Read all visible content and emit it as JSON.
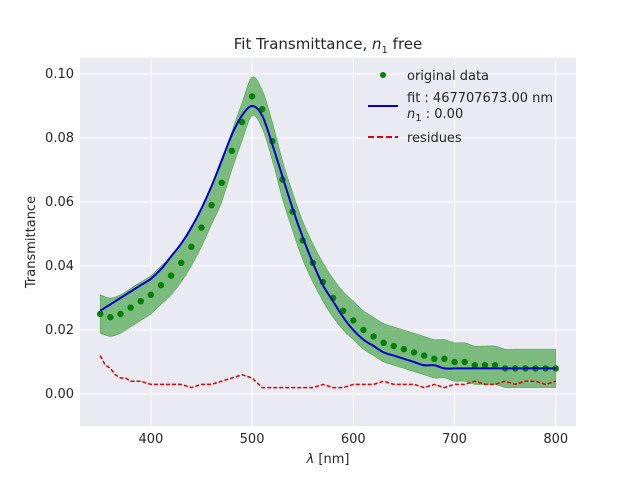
{
  "chart_data": {
    "type": "line",
    "title_main": "Fit Transmittance, ",
    "title_var": "n",
    "title_sub": "1",
    "title_tail": " free",
    "xlabel_var": "λ",
    "xlabel_unit": " [nm]",
    "ylabel": "Transmittance",
    "xlim": [
      330,
      820
    ],
    "ylim": [
      -0.01,
      0.105
    ],
    "xticks": [
      400,
      500,
      600,
      700,
      800
    ],
    "yticks": [
      0.0,
      0.02,
      0.04,
      0.06,
      0.08,
      0.1
    ],
    "ytick_labels": [
      "0.00",
      "0.02",
      "0.04",
      "0.06",
      "0.08",
      "0.10"
    ],
    "grid": true,
    "legend_position": "top-right",
    "legend": {
      "data_label": "original data",
      "fit_label_1": "fit : 467707673.00 nm",
      "fit_label_2_var": "n",
      "fit_label_2_sub": "1",
      "fit_label_2_tail": " : 0.00",
      "residues_label": "residues"
    },
    "series": [
      {
        "name": "original data",
        "kind": "points_with_error_band",
        "x": [
          350,
          360,
          370,
          380,
          390,
          400,
          410,
          420,
          430,
          440,
          450,
          460,
          470,
          480,
          490,
          500,
          510,
          520,
          530,
          540,
          550,
          560,
          570,
          580,
          590,
          600,
          610,
          620,
          630,
          640,
          650,
          660,
          670,
          680,
          690,
          700,
          710,
          720,
          730,
          740,
          750,
          760,
          770,
          780,
          790,
          800
        ],
        "y": [
          0.025,
          0.024,
          0.025,
          0.027,
          0.029,
          0.031,
          0.034,
          0.037,
          0.041,
          0.046,
          0.052,
          0.059,
          0.066,
          0.076,
          0.085,
          0.093,
          0.089,
          0.079,
          0.067,
          0.057,
          0.048,
          0.041,
          0.035,
          0.03,
          0.026,
          0.023,
          0.02,
          0.018,
          0.016,
          0.015,
          0.014,
          0.013,
          0.012,
          0.011,
          0.011,
          0.01,
          0.01,
          0.009,
          0.009,
          0.009,
          0.008,
          0.008,
          0.008,
          0.008,
          0.008,
          0.008
        ],
        "band_halfwidth": 0.006,
        "color": "#008000",
        "band_color": "#4ca64c"
      },
      {
        "name": "fit : 467707673.00 nm",
        "kind": "line",
        "x": [
          350,
          360,
          370,
          380,
          390,
          400,
          410,
          420,
          430,
          440,
          450,
          460,
          470,
          480,
          490,
          500,
          510,
          520,
          530,
          540,
          550,
          560,
          570,
          580,
          590,
          600,
          610,
          620,
          630,
          640,
          650,
          660,
          670,
          680,
          690,
          700,
          710,
          720,
          730,
          740,
          750,
          760,
          770,
          780,
          790,
          800
        ],
        "y": [
          0.026,
          0.028,
          0.03,
          0.032,
          0.034,
          0.036,
          0.039,
          0.043,
          0.047,
          0.052,
          0.058,
          0.065,
          0.073,
          0.081,
          0.087,
          0.09,
          0.087,
          0.078,
          0.068,
          0.058,
          0.049,
          0.041,
          0.034,
          0.029,
          0.024,
          0.02,
          0.017,
          0.015,
          0.013,
          0.012,
          0.011,
          0.01,
          0.009,
          0.009,
          0.008,
          0.008,
          0.008,
          0.008,
          0.008,
          0.008,
          0.008,
          0.008,
          0.008,
          0.008,
          0.008,
          0.008
        ],
        "color": "#0000cc"
      },
      {
        "name": "residues",
        "kind": "dashed_line",
        "x": [
          350,
          355,
          360,
          365,
          370,
          375,
          380,
          390,
          400,
          410,
          420,
          430,
          440,
          450,
          460,
          470,
          480,
          490,
          500,
          510,
          520,
          530,
          540,
          550,
          560,
          570,
          580,
          590,
          600,
          610,
          620,
          630,
          640,
          650,
          660,
          670,
          680,
          690,
          700,
          710,
          720,
          730,
          740,
          750,
          760,
          770,
          780,
          790,
          800
        ],
        "y": [
          0.012,
          0.009,
          0.008,
          0.006,
          0.005,
          0.005,
          0.004,
          0.004,
          0.003,
          0.003,
          0.003,
          0.003,
          0.002,
          0.003,
          0.003,
          0.004,
          0.005,
          0.006,
          0.005,
          0.002,
          0.002,
          0.002,
          0.002,
          0.002,
          0.002,
          0.003,
          0.002,
          0.002,
          0.003,
          0.003,
          0.003,
          0.004,
          0.003,
          0.003,
          0.003,
          0.002,
          0.003,
          0.002,
          0.003,
          0.003,
          0.004,
          0.003,
          0.003,
          0.004,
          0.003,
          0.004,
          0.004,
          0.003,
          0.004
        ],
        "color": "#e00000"
      }
    ]
  }
}
